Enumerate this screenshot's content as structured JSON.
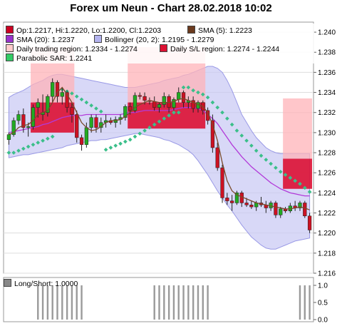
{
  "title": "Forex um Neun - Chart 28.02.2018 10:02",
  "legend": [
    {
      "key": "ohlc",
      "color": "#cc0022",
      "text": "Op:1.2217, Hi:1.2220, Lo:1.2200, Cl:1.2203"
    },
    {
      "key": "sma5",
      "color": "#6b3a1e",
      "text": "SMA (5): 1.2223"
    },
    {
      "key": "sma20",
      "color": "#9933cc",
      "text": "SMA (20): 1.2237"
    },
    {
      "key": "bollinger",
      "color": "#b3b3ee",
      "text": "Bollinger (20, 2): 1.2195 - 1.2279"
    },
    {
      "key": "daily_region",
      "color": "#ffcccc",
      "text": "Daily trading region: 1.2334 - 1.2274"
    },
    {
      "key": "daily_sl",
      "color": "#dd1133",
      "text": "Daily S/L region: 1.2274 - 1.2244"
    },
    {
      "key": "sar",
      "color": "#33cc66",
      "text": "Parabolic SAR: 1.2241"
    }
  ],
  "lower_legend": {
    "color": "#888888",
    "text": "Long/Short: 1.0000"
  },
  "chart_data": [
    {
      "type": "candlestick",
      "ylim": [
        1.216,
        1.241
      ],
      "yticks": [
        "1.216",
        "1.218",
        "1.220",
        "1.222",
        "1.224",
        "1.226",
        "1.228",
        "1.230",
        "1.232",
        "1.234",
        "1.236",
        "1.238",
        "1.240"
      ],
      "candles": [
        [
          1.2293,
          1.23,
          1.2288,
          1.2298
        ],
        [
          1.2298,
          1.2315,
          1.2296,
          1.2312
        ],
        [
          1.2312,
          1.2322,
          1.2308,
          1.2318
        ],
        [
          1.2318,
          1.2324,
          1.23,
          1.2305
        ],
        [
          1.2305,
          1.231,
          1.2296,
          1.2306
        ],
        [
          1.2306,
          1.2328,
          1.2303,
          1.2325
        ],
        [
          1.2325,
          1.2334,
          1.2315,
          1.233
        ],
        [
          1.2318,
          1.2338,
          1.2312,
          1.232
        ],
        [
          1.232,
          1.2338,
          1.2316,
          1.2336
        ],
        [
          1.2336,
          1.2354,
          1.233,
          1.235
        ],
        [
          1.235,
          1.2352,
          1.233,
          1.2336
        ],
        [
          1.2336,
          1.2345,
          1.2328,
          1.234
        ],
        [
          1.234,
          1.2342,
          1.232,
          1.2325
        ],
        [
          1.2325,
          1.233,
          1.231,
          1.2318
        ],
        [
          1.2318,
          1.2322,
          1.229,
          1.2295
        ],
        [
          1.2295,
          1.2298,
          1.2282,
          1.2288
        ],
        [
          1.2288,
          1.231,
          1.2285,
          1.2305
        ],
        [
          1.2305,
          1.2318,
          1.23,
          1.2315
        ],
        [
          1.2315,
          1.2318,
          1.23,
          1.2305
        ],
        [
          1.2305,
          1.2315,
          1.23,
          1.231
        ],
        [
          1.231,
          1.2318,
          1.2305,
          1.2312
        ],
        [
          1.2312,
          1.2315,
          1.2308,
          1.231
        ],
        [
          1.231,
          1.2316,
          1.2305,
          1.2313
        ],
        [
          1.2313,
          1.2318,
          1.2308,
          1.2315
        ],
        [
          1.2315,
          1.2328,
          1.2312,
          1.2326
        ],
        [
          1.2326,
          1.233,
          1.2318,
          1.2322
        ],
        [
          1.2322,
          1.234,
          1.232,
          1.2337
        ],
        [
          1.2337,
          1.234,
          1.2333,
          1.2336
        ],
        [
          1.2336,
          1.234,
          1.2328,
          1.2332
        ],
        [
          1.2332,
          1.2335,
          1.2328,
          1.2331
        ],
        [
          1.2331,
          1.2336,
          1.2322,
          1.2325
        ],
        [
          1.2325,
          1.233,
          1.232,
          1.2328
        ],
        [
          1.2328,
          1.234,
          1.2325,
          1.2336
        ],
        [
          1.2336,
          1.2338,
          1.232,
          1.2325
        ],
        [
          1.2325,
          1.2335,
          1.2322,
          1.2333
        ],
        [
          1.2333,
          1.2345,
          1.233,
          1.234
        ],
        [
          1.234,
          1.2342,
          1.2325,
          1.233
        ],
        [
          1.233,
          1.2336,
          1.2324,
          1.2332
        ],
        [
          1.2332,
          1.2336,
          1.232,
          1.2324
        ],
        [
          1.2324,
          1.2332,
          1.232,
          1.233
        ],
        [
          1.233,
          1.2332,
          1.2318,
          1.2322
        ],
        [
          1.2322,
          1.2325,
          1.2308,
          1.2312
        ],
        [
          1.2312,
          1.2318,
          1.228,
          1.2285
        ],
        [
          1.2285,
          1.229,
          1.2262,
          1.2265
        ],
        [
          1.2265,
          1.2268,
          1.223,
          1.2235
        ],
        [
          1.2235,
          1.224,
          1.2228,
          1.2232
        ],
        [
          1.2232,
          1.2238,
          1.2222,
          1.223
        ],
        [
          1.223,
          1.2242,
          1.2228,
          1.224
        ],
        [
          1.224,
          1.2242,
          1.2226,
          1.223
        ],
        [
          1.223,
          1.2235,
          1.2226,
          1.2228
        ],
        [
          1.2228,
          1.2232,
          1.2224,
          1.2226
        ],
        [
          1.2226,
          1.2232,
          1.2222,
          1.223
        ],
        [
          1.223,
          1.2236,
          1.2226,
          1.2228
        ],
        [
          1.2228,
          1.2232,
          1.222,
          1.2225
        ],
        [
          1.2225,
          1.2232,
          1.2222,
          1.223
        ],
        [
          1.223,
          1.2232,
          1.2215,
          1.2218
        ],
        [
          1.2218,
          1.2226,
          1.2215,
          1.2224
        ],
        [
          1.2224,
          1.2226,
          1.222,
          1.2222
        ],
        [
          1.2222,
          1.223,
          1.222,
          1.2227
        ],
        [
          1.2227,
          1.2232,
          1.2222,
          1.2225
        ],
        [
          1.2225,
          1.2232,
          1.2222,
          1.223
        ],
        [
          1.223,
          1.2232,
          1.2215,
          1.2217
        ],
        [
          1.2217,
          1.222,
          1.22,
          1.2203
        ]
      ],
      "sma5": [
        1.2298,
        1.23,
        1.2305,
        1.2307,
        1.2308,
        1.2312,
        1.2318,
        1.232,
        1.2322,
        1.233,
        1.234,
        1.2345,
        1.2338,
        1.233,
        1.232,
        1.231,
        1.2305,
        1.2302,
        1.2303,
        1.2306,
        1.231,
        1.2312,
        1.2312,
        1.2313,
        1.2316,
        1.232,
        1.2325,
        1.2328,
        1.233,
        1.2332,
        1.2331,
        1.233,
        1.233,
        1.233,
        1.2331,
        1.2333,
        1.2334,
        1.2332,
        1.233,
        1.2328,
        1.2326,
        1.232,
        1.2308,
        1.2292,
        1.227,
        1.2252,
        1.2242,
        1.2238,
        1.2236,
        1.2234,
        1.2232,
        1.223,
        1.2229,
        1.2228,
        1.2227,
        1.2226,
        1.2225,
        1.2224,
        1.2224,
        1.2225,
        1.2226,
        1.2225,
        1.2223
      ],
      "sma20": [
        1.23,
        1.2301,
        1.2302,
        1.2303,
        1.2304,
        1.2305,
        1.2306,
        1.2308,
        1.2309,
        1.2311,
        1.2313,
        1.2315,
        1.2316,
        1.2317,
        1.2317,
        1.2317,
        1.2318,
        1.2318,
        1.2318,
        1.2318,
        1.2318,
        1.2318,
        1.2318,
        1.2318,
        1.2319,
        1.232,
        1.232,
        1.2321,
        1.2322,
        1.2322,
        1.2322,
        1.2322,
        1.2322,
        1.2322,
        1.2323,
        1.2324,
        1.2325,
        1.2325,
        1.2325,
        1.2324,
        1.2322,
        1.2318,
        1.2314,
        1.2309,
        1.2302,
        1.2295,
        1.2288,
        1.2282,
        1.2276,
        1.2271,
        1.2266,
        1.2262,
        1.2258,
        1.2254,
        1.225,
        1.2247,
        1.2244,
        1.2242,
        1.224,
        1.2239,
        1.2238,
        1.2237,
        1.2237
      ],
      "bb_upper": [
        1.2335,
        1.2338,
        1.234,
        1.2342,
        1.2345,
        1.2348,
        1.235,
        1.2352,
        1.2355,
        1.2357,
        1.2358,
        1.2358,
        1.2357,
        1.2356,
        1.2355,
        1.2354,
        1.2353,
        1.2352,
        1.2351,
        1.235,
        1.2349,
        1.2348,
        1.2347,
        1.2346,
        1.2345,
        1.2345,
        1.2345,
        1.2346,
        1.2347,
        1.2348,
        1.2349,
        1.235,
        1.2352,
        1.2353,
        1.2354,
        1.2355,
        1.2357,
        1.2358,
        1.236,
        1.2362,
        1.2364,
        1.2366,
        1.2366,
        1.2364,
        1.236,
        1.2352,
        1.2342,
        1.233,
        1.2318,
        1.231,
        1.2302,
        1.2295,
        1.229,
        1.2285,
        1.2282,
        1.228,
        1.2279,
        1.2279,
        1.2279,
        1.2279,
        1.2279,
        1.2279,
        1.2279
      ],
      "bb_lower": [
        1.2275,
        1.2276,
        1.2277,
        1.2278,
        1.2278,
        1.2279,
        1.228,
        1.2281,
        1.2282,
        1.2283,
        1.2284,
        1.2285,
        1.2287,
        1.2288,
        1.2289,
        1.229,
        1.2291,
        1.2292,
        1.2292,
        1.2293,
        1.2293,
        1.2294,
        1.2295,
        1.2296,
        1.2297,
        1.2298,
        1.2299,
        1.2299,
        1.2298,
        1.2297,
        1.2296,
        1.2295,
        1.2293,
        1.2292,
        1.229,
        1.2288,
        1.2285,
        1.2282,
        1.2278,
        1.2272,
        1.2265,
        1.2258,
        1.225,
        1.2242,
        1.2235,
        1.2228,
        1.2222,
        1.2215,
        1.2208,
        1.2202,
        1.2196,
        1.2192,
        1.2188,
        1.2185,
        1.2184,
        1.2184,
        1.2186,
        1.2188,
        1.219,
        1.2192,
        1.2193,
        1.2194,
        1.2195
      ],
      "sar": [
        1.228,
        1.228,
        1.2282,
        1.2284,
        1.2286,
        1.2288,
        1.229,
        1.2292,
        1.2294,
        1.2296,
        1.2345,
        1.2343,
        1.2341,
        1.2339,
        1.2336,
        1.2333,
        1.233,
        1.2327,
        1.2324,
        1.2321,
        1.2283,
        1.2285,
        1.2287,
        1.2289,
        1.2291,
        1.2293,
        1.2296,
        1.2299,
        1.2302,
        1.2305,
        1.2308,
        1.2311,
        1.2314,
        1.2317,
        1.232,
        1.232,
        1.2345,
        1.2345,
        1.2342,
        1.234,
        1.2338,
        1.2335,
        1.233,
        1.2325,
        1.232,
        1.2314,
        1.2308,
        1.2302,
        1.2297,
        1.2292,
        1.2287,
        1.2282,
        1.2277,
        1.2273,
        1.2269,
        1.2265,
        1.2261,
        1.2258,
        1.2255,
        1.2252,
        1.2249,
        1.2245,
        1.2241
      ],
      "trading_regions": [
        {
          "from": 5,
          "to": 13,
          "top": 1.2385,
          "bottom": 1.233
        },
        {
          "from": 25,
          "to": 40,
          "top": 1.2385,
          "bottom": 1.233
        },
        {
          "from": 57,
          "to": 62,
          "top": 1.2334,
          "bottom": 1.2274
        }
      ],
      "sl_regions": [
        {
          "from": 5,
          "to": 13,
          "top": 1.233,
          "bottom": 1.23
        },
        {
          "from": 25,
          "to": 40,
          "top": 1.233,
          "bottom": 1.2304
        },
        {
          "from": 57,
          "to": 62,
          "top": 1.2274,
          "bottom": 1.2244
        }
      ]
    },
    {
      "type": "bar",
      "series": [
        {
          "name": "Long/Short",
          "values": [
            0,
            0,
            0,
            0,
            0,
            0,
            1,
            1,
            1,
            1,
            1,
            1,
            1,
            1,
            1,
            1,
            0,
            0,
            0,
            0,
            0,
            0,
            0,
            0,
            0,
            0,
            0,
            0,
            0,
            0,
            1,
            1,
            1,
            1,
            1,
            1,
            1,
            1,
            1,
            1,
            1,
            1,
            0,
            0,
            0,
            0,
            0,
            0,
            0,
            0,
            0,
            0,
            0,
            0,
            0,
            0,
            0,
            0,
            0,
            0,
            1,
            1,
            1
          ]
        }
      ],
      "ylim": [
        0,
        1
      ],
      "yticks": [
        "0.0",
        "0.5",
        "1.0"
      ]
    }
  ]
}
